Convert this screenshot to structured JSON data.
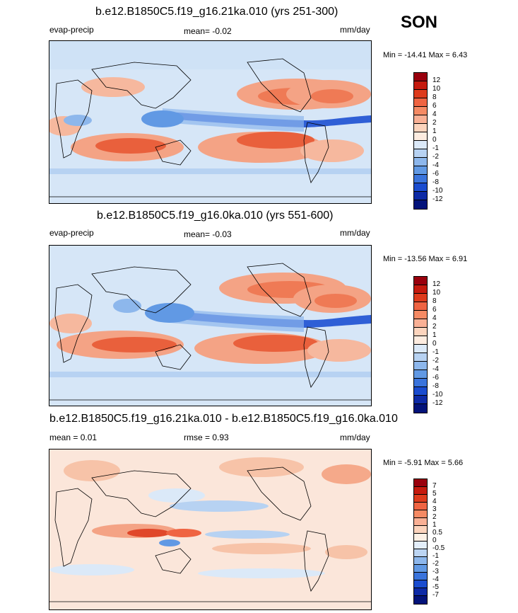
{
  "season": "SON",
  "units": "mm/day",
  "panels": [
    {
      "title": "b.e12.B1850C5.f19_g16.21ka.010 (yrs 251-300)",
      "left_label": "evap-precip",
      "center_label": "mean=  -0.02",
      "right_label": "mm/day",
      "minmax": "Min = -14.41 Max =   6.43",
      "levels": [
        "12",
        "10",
        "8",
        "6",
        "4",
        "2",
        "1",
        "0",
        "-1",
        "-2",
        "-4",
        "-6",
        "-8",
        "-10",
        "-12"
      ],
      "colors": [
        "#99000d",
        "#c51a0e",
        "#de3b1c",
        "#ef6442",
        "#f58a64",
        "#f9b095",
        "#fcd4bd",
        "#fdece0",
        "#dbe9f8",
        "#b7d2f2",
        "#8db7ec",
        "#6199e4",
        "#3a74dc",
        "#1a4ccf",
        "#0d2aa6",
        "#03137a"
      ]
    },
    {
      "title": "b.e12.B1850C5.f19_g16.0ka.010 (yrs 551-600)",
      "left_label": "evap-precip",
      "center_label": "mean=  -0.03",
      "right_label": "mm/day",
      "minmax": "Min = -13.56 Max =   6.91",
      "levels": [
        "12",
        "10",
        "8",
        "6",
        "4",
        "2",
        "1",
        "0",
        "-1",
        "-2",
        "-4",
        "-6",
        "-8",
        "-10",
        "-12"
      ],
      "colors": [
        "#99000d",
        "#c51a0e",
        "#de3b1c",
        "#ef6442",
        "#f58a64",
        "#f9b095",
        "#fcd4bd",
        "#fdece0",
        "#dbe9f8",
        "#b7d2f2",
        "#8db7ec",
        "#6199e4",
        "#3a74dc",
        "#1a4ccf",
        "#0d2aa6",
        "#03137a"
      ]
    },
    {
      "title": "b.e12.B1850C5.f19_g16.21ka.010 - b.e12.B1850C5.f19_g16.0ka.010",
      "left_label": "mean =   0.01",
      "center_label": "rmse =   0.93",
      "right_label": "mm/day",
      "minmax": "Min =  -5.91 Max =   5.66",
      "levels": [
        "7",
        "5",
        "4",
        "3",
        "2",
        "1",
        "0.5",
        "0",
        "-0.5",
        "-1",
        "-2",
        "-3",
        "-4",
        "-5",
        "-7"
      ],
      "colors": [
        "#99000d",
        "#c51a0e",
        "#de3b1c",
        "#ef6442",
        "#f58a64",
        "#f9b095",
        "#fcd4bd",
        "#fdf1e6",
        "#e3eefa",
        "#bcd5f3",
        "#8db7ec",
        "#6199e4",
        "#3a74dc",
        "#1a4ccf",
        "#0d2aa6",
        "#03137a"
      ]
    }
  ]
}
